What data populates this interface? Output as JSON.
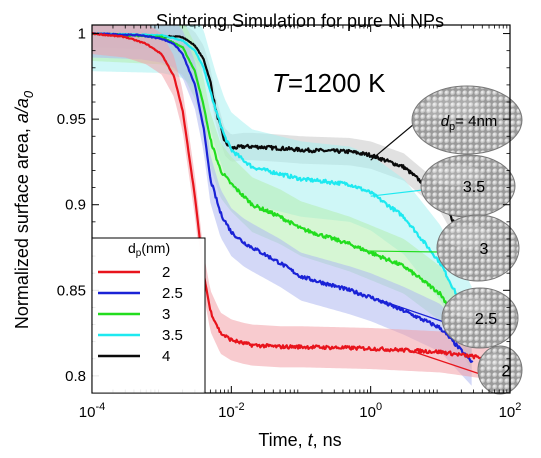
{
  "chart_data": {
    "type": "line",
    "title": "Sintering Simulation for pure Ni NPs",
    "annotation": "T=1200 K",
    "annotation_parts": {
      "var": "T",
      "rest": "=1200 K"
    },
    "xlabel": "Time, t, ns",
    "xlabel_parts": {
      "pre": "Time, ",
      "var": "t",
      "post": ", ns"
    },
    "ylabel": "Normalized surface area,  a/a0",
    "ylabel_parts": {
      "pre": "Normalized surface area,  ",
      "var": "a/a",
      "sub": "0"
    },
    "xscale": "log",
    "xlim": [
      0.0001,
      100
    ],
    "ylim": [
      0.79,
      1.005
    ],
    "x_ticks": [
      {
        "value": 0.0001,
        "base": "10",
        "exp": "-4"
      },
      {
        "value": 0.01,
        "base": "10",
        "exp": "-2"
      },
      {
        "value": 1,
        "base": "10",
        "exp": "0"
      },
      {
        "value": 100,
        "base": "10",
        "exp": "2"
      }
    ],
    "y_ticks": [
      {
        "value": 1,
        "label": "1"
      },
      {
        "value": 0.95,
        "label": "0.95"
      },
      {
        "value": 0.9,
        "label": "0.9"
      },
      {
        "value": 0.85,
        "label": "0.85"
      },
      {
        "value": 0.8,
        "label": "0.8"
      }
    ],
    "legend": {
      "title_pre": "d",
      "title_sub": "p",
      "title_post": "(nm)",
      "placement": "bottom-left",
      "entries": [
        "2",
        "2.5",
        "3",
        "3.5",
        "4"
      ]
    },
    "series": [
      {
        "name": "2",
        "color": "#e8141c",
        "band_color": "#f2a0a8",
        "x": [
          0.0001,
          0.0003,
          0.0006,
          0.001,
          0.0015,
          0.002,
          0.003,
          0.004,
          0.005,
          0.007,
          0.01,
          0.015,
          0.02,
          0.05,
          0.1,
          1,
          10,
          50
        ],
        "y": [
          1.0,
          0.998,
          0.994,
          0.988,
          0.975,
          0.955,
          0.905,
          0.86,
          0.838,
          0.825,
          0.821,
          0.819,
          0.818,
          0.817,
          0.817,
          0.816,
          0.814,
          0.81
        ],
        "band": [
          0.012,
          0.012,
          0.012,
          0.012,
          0.012,
          0.012,
          0.012,
          0.012,
          0.012,
          0.012,
          0.012,
          0.012,
          0.012,
          0.012,
          0.012,
          0.012,
          0.012,
          0.012
        ]
      },
      {
        "name": "2.5",
        "color": "#1a22d6",
        "band_color": "#aeb8f0",
        "x": [
          0.0001,
          0.0005,
          0.001,
          0.0015,
          0.002,
          0.003,
          0.004,
          0.005,
          0.007,
          0.01,
          0.015,
          0.02,
          0.05,
          0.1,
          0.5,
          1,
          3,
          10,
          30
        ],
        "y": [
          1.0,
          0.999,
          0.997,
          0.994,
          0.988,
          0.97,
          0.945,
          0.915,
          0.895,
          0.884,
          0.878,
          0.875,
          0.866,
          0.858,
          0.85,
          0.846,
          0.838,
          0.828,
          0.807
        ],
        "band": [
          0.014,
          0.014,
          0.014,
          0.014,
          0.014,
          0.014,
          0.014,
          0.014,
          0.014,
          0.014,
          0.014,
          0.014,
          0.014,
          0.014,
          0.014,
          0.014,
          0.014,
          0.014,
          0.014
        ]
      },
      {
        "name": "3",
        "color": "#22dd1e",
        "band_color": "#b5efb0",
        "x": [
          0.0001,
          0.001,
          0.002,
          0.003,
          0.004,
          0.005,
          0.007,
          0.01,
          0.015,
          0.02,
          0.05,
          0.1,
          0.5,
          1,
          3,
          10,
          30
        ],
        "y": [
          1.0,
          0.998,
          0.992,
          0.978,
          0.958,
          0.938,
          0.92,
          0.912,
          0.905,
          0.9,
          0.893,
          0.886,
          0.877,
          0.872,
          0.864,
          0.848,
          0.818
        ],
        "band": [
          0.016,
          0.016,
          0.016,
          0.016,
          0.016,
          0.016,
          0.016,
          0.016,
          0.016,
          0.016,
          0.016,
          0.016,
          0.016,
          0.016,
          0.016,
          0.016,
          0.016
        ]
      },
      {
        "name": "3.5",
        "color": "#1ee9f0",
        "band_color": "#a8f1f0",
        "x": [
          0.0001,
          0.001,
          0.002,
          0.003,
          0.004,
          0.005,
          0.006,
          0.008,
          0.01,
          0.015,
          0.02,
          0.05,
          0.1,
          0.5,
          1,
          3,
          10,
          30
        ],
        "y": [
          1.0,
          0.999,
          0.996,
          0.99,
          0.98,
          0.966,
          0.955,
          0.94,
          0.932,
          0.926,
          0.922,
          0.918,
          0.915,
          0.912,
          0.907,
          0.893,
          0.866,
          0.828
        ],
        "band": [
          0.022,
          0.022,
          0.022,
          0.022,
          0.022,
          0.022,
          0.022,
          0.022,
          0.022,
          0.022,
          0.022,
          0.022,
          0.022,
          0.022,
          0.022,
          0.022,
          0.022,
          0.022
        ]
      },
      {
        "name": "4",
        "color": "#0a0a0a",
        "band_color": "#c9c9c9",
        "x": [
          0.0001,
          0.002,
          0.003,
          0.004,
          0.005,
          0.006,
          0.008,
          0.01,
          0.015,
          0.02,
          0.05,
          0.1,
          0.5,
          1,
          3,
          10,
          20
        ],
        "y": [
          1.0,
          0.998,
          0.993,
          0.985,
          0.972,
          0.955,
          0.937,
          0.933,
          0.934,
          0.934,
          0.933,
          0.932,
          0.931,
          0.929,
          0.922,
          0.904,
          0.882
        ],
        "band": [
          0.008,
          0.008,
          0.008,
          0.008,
          0.008,
          0.008,
          0.008,
          0.008,
          0.008,
          0.008,
          0.008,
          0.008,
          0.008,
          0.008,
          0.008,
          0.008,
          0.008
        ]
      }
    ],
    "particle_labels": [
      {
        "label_pre": "d",
        "label_sub": "p",
        "label_post": "= 4nm",
        "series": "4",
        "x": 1,
        "y": 0.926,
        "color": "#0a0a0a"
      },
      {
        "label": "3.5",
        "series": "3.5",
        "x": 1,
        "y": 0.905,
        "color": "#1ee9f0"
      },
      {
        "label": "3",
        "series": "3",
        "x": 0.8,
        "y": 0.873,
        "color": "#22dd1e"
      },
      {
        "label": "2.5",
        "series": "2.5",
        "x": 1.2,
        "y": 0.845,
        "color": "#1a22d6"
      },
      {
        "label": "2",
        "series": "2",
        "x": 3,
        "y": 0.816,
        "color": "#e8141c"
      }
    ]
  }
}
